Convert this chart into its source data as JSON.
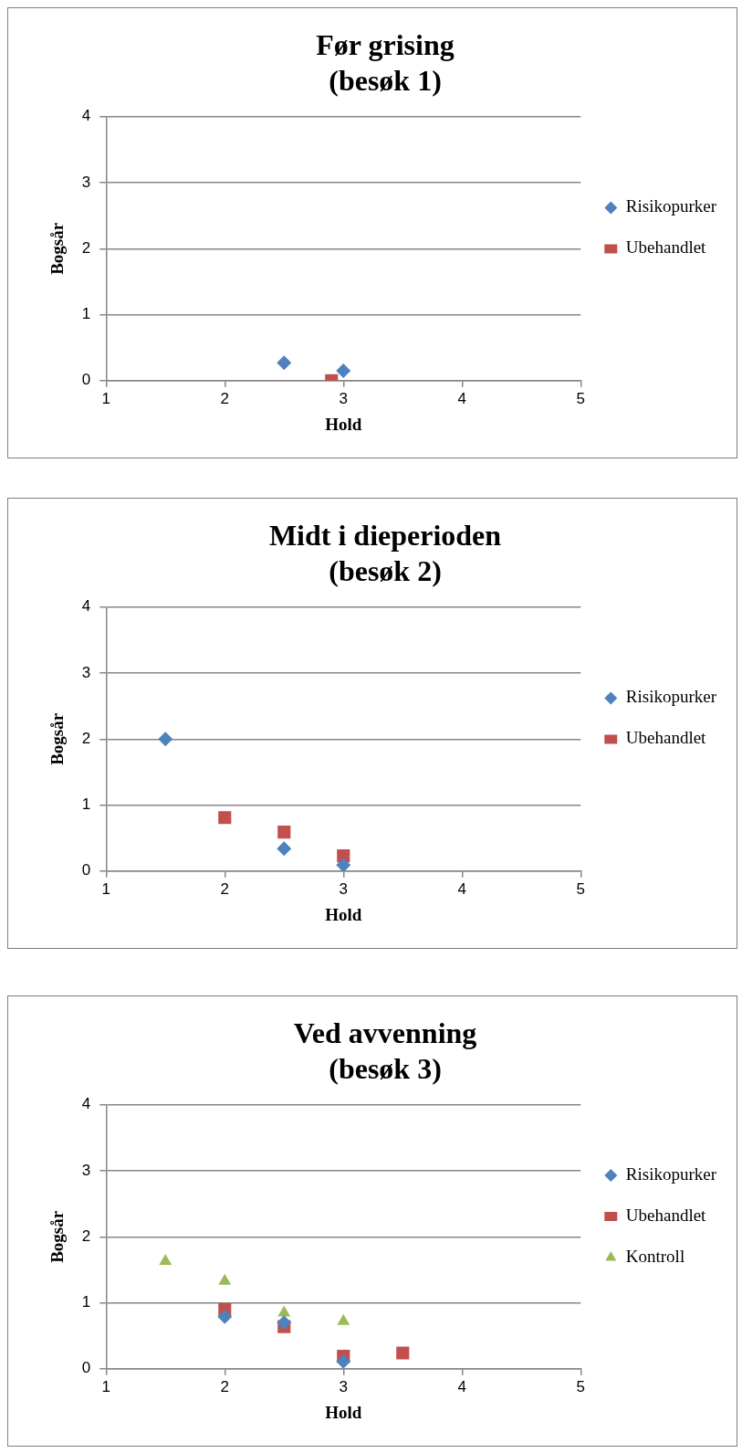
{
  "chart_data": [
    {
      "type": "scatter",
      "title": "Før grising\n(besøk 1)",
      "xlabel": "Hold",
      "ylabel": "Bogsår",
      "xlim": [
        1,
        5
      ],
      "xticks": [
        1,
        2,
        3,
        4,
        5
      ],
      "ylim": [
        0,
        4
      ],
      "yticks": [
        0,
        1,
        2,
        3,
        4
      ],
      "grid": "y",
      "legend": "right",
      "series": [
        {
          "name": "Risikopurker",
          "color": "#4f81bd",
          "marker": "diamond",
          "x": [
            2.5,
            3
          ],
          "values": [
            0.27,
            0.15
          ]
        },
        {
          "name": "Ubehandlet",
          "color": "#c0504d",
          "marker": "square",
          "x": [
            2.9
          ],
          "values": [
            0
          ]
        }
      ]
    },
    {
      "type": "scatter",
      "title": "Midt i dieperioden\n(besøk 2)",
      "xlabel": "Hold",
      "ylabel": "Bogsår",
      "xlim": [
        1,
        5
      ],
      "xticks": [
        1,
        2,
        3,
        4,
        5
      ],
      "ylim": [
        0,
        4
      ],
      "yticks": [
        0,
        1,
        2,
        3,
        4
      ],
      "grid": "y",
      "legend": "right",
      "series": [
        {
          "name": "Risikopurker",
          "color": "#4f81bd",
          "marker": "diamond",
          "x": [
            1.5,
            2.5,
            3
          ],
          "values": [
            2,
            0.34,
            0.09
          ]
        },
        {
          "name": "Ubehandlet",
          "color": "#c0504d",
          "marker": "square",
          "x": [
            2,
            2.5,
            3
          ],
          "values": [
            0.81,
            0.59,
            0.23
          ]
        }
      ]
    },
    {
      "type": "scatter",
      "title": "Ved avvenning\n(besøk 3)",
      "xlabel": "Hold",
      "ylabel": "Bogsår",
      "xlim": [
        1,
        5
      ],
      "xticks": [
        1,
        2,
        3,
        4,
        5
      ],
      "ylim": [
        0,
        4
      ],
      "yticks": [
        0,
        1,
        2,
        3,
        4
      ],
      "grid": "y",
      "legend": "right",
      "series": [
        {
          "name": "Risikopurker",
          "color": "#4f81bd",
          "marker": "diamond",
          "x": [
            2,
            2.5,
            3
          ],
          "values": [
            0.79,
            0.7,
            0.11
          ]
        },
        {
          "name": "Ubehandlet",
          "color": "#c0504d",
          "marker": "square",
          "x": [
            2,
            2.5,
            3,
            3.5
          ],
          "values": [
            0.9,
            0.64,
            0.19,
            0.24
          ]
        },
        {
          "name": "Kontroll",
          "color": "#9bbb59",
          "marker": "triangle",
          "x": [
            1.5,
            2,
            2.5,
            3
          ],
          "values": [
            1.63,
            1.33,
            0.85,
            0.72
          ]
        }
      ]
    }
  ]
}
